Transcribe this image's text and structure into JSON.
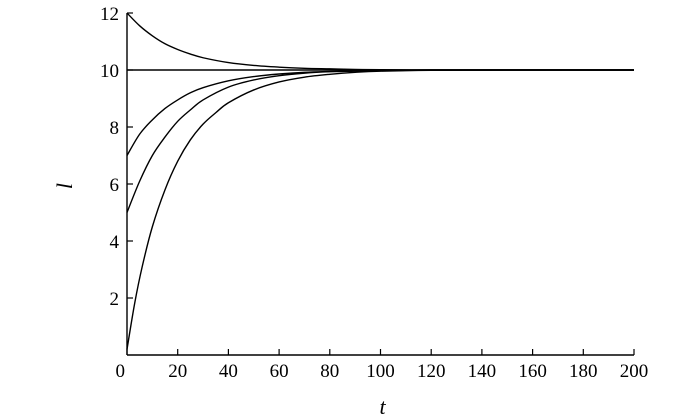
{
  "chart_data": {
    "type": "line",
    "title": "",
    "xlabel": "t",
    "ylabel": "l",
    "xlim": [
      0,
      200
    ],
    "ylim": [
      0,
      12
    ],
    "xticks": [
      0,
      20,
      40,
      60,
      80,
      100,
      120,
      140,
      160,
      180,
      200
    ],
    "yticks": [
      2,
      4,
      6,
      8,
      10,
      12
    ],
    "grid": false,
    "legend": "none",
    "series": [
      {
        "x": [
          0,
          5,
          10,
          15,
          20,
          25,
          30,
          40,
          50,
          60,
          70,
          80,
          90,
          100,
          120,
          150,
          200
        ],
        "y": [
          12,
          11.55,
          11.2,
          10.92,
          10.72,
          10.56,
          10.43,
          10.26,
          10.16,
          10.1,
          10.06,
          10.04,
          10.02,
          10.01,
          10,
          10,
          10
        ]
      },
      {
        "x": [
          0,
          200
        ],
        "y": [
          10,
          10
        ]
      },
      {
        "x": [
          0,
          5,
          10,
          15,
          20,
          25,
          30,
          40,
          50,
          60,
          70,
          80,
          90,
          100,
          120,
          150,
          200
        ],
        "y": [
          7,
          7.75,
          8.25,
          8.65,
          8.95,
          9.2,
          9.38,
          9.62,
          9.77,
          9.86,
          9.92,
          9.95,
          9.97,
          9.98,
          10,
          10,
          10
        ]
      },
      {
        "x": [
          0,
          5,
          10,
          15,
          20,
          25,
          30,
          40,
          50,
          60,
          70,
          80,
          90,
          100,
          120,
          150,
          200
        ],
        "y": [
          5,
          6.1,
          7.0,
          7.65,
          8.2,
          8.6,
          8.95,
          9.4,
          9.65,
          9.8,
          9.89,
          9.94,
          9.96,
          9.98,
          10,
          10,
          10
        ]
      },
      {
        "x": [
          0,
          3,
          6,
          10,
          15,
          20,
          25,
          30,
          35,
          40,
          50,
          60,
          70,
          80,
          90,
          100,
          120,
          150,
          200
        ],
        "y": [
          0.2,
          1.8,
          3.1,
          4.5,
          5.8,
          6.8,
          7.55,
          8.1,
          8.5,
          8.85,
          9.3,
          9.58,
          9.75,
          9.85,
          9.92,
          9.96,
          9.99,
          10,
          10
        ]
      }
    ]
  }
}
